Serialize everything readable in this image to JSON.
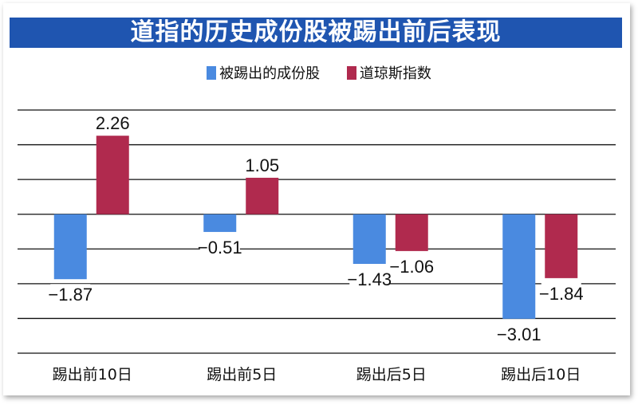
{
  "chart_data": {
    "type": "bar",
    "title": "道指的历史成份股被踢出前后表现",
    "categories": [
      "踢出前10日",
      "踢出前5日",
      "踢出后5日",
      "踢出后10日"
    ],
    "series": [
      {
        "name": "被踢出的成份股",
        "color": "#4a8ae0",
        "values": [
          -1.87,
          -0.51,
          -1.43,
          -3.01
        ],
        "labels": [
          "−1.87",
          "−0.51",
          "−1.43",
          "−3.01"
        ]
      },
      {
        "name": "道琼斯指数",
        "color": "#b02a4e",
        "values": [
          2.26,
          1.05,
          -1.06,
          -1.84
        ],
        "labels": [
          "2.26",
          "1.05",
          "−1.06",
          "−1.84"
        ]
      }
    ],
    "ylim": [
      -4,
      3
    ],
    "grid": true,
    "legend_position": "top-center",
    "xlabel": "",
    "ylabel": ""
  }
}
